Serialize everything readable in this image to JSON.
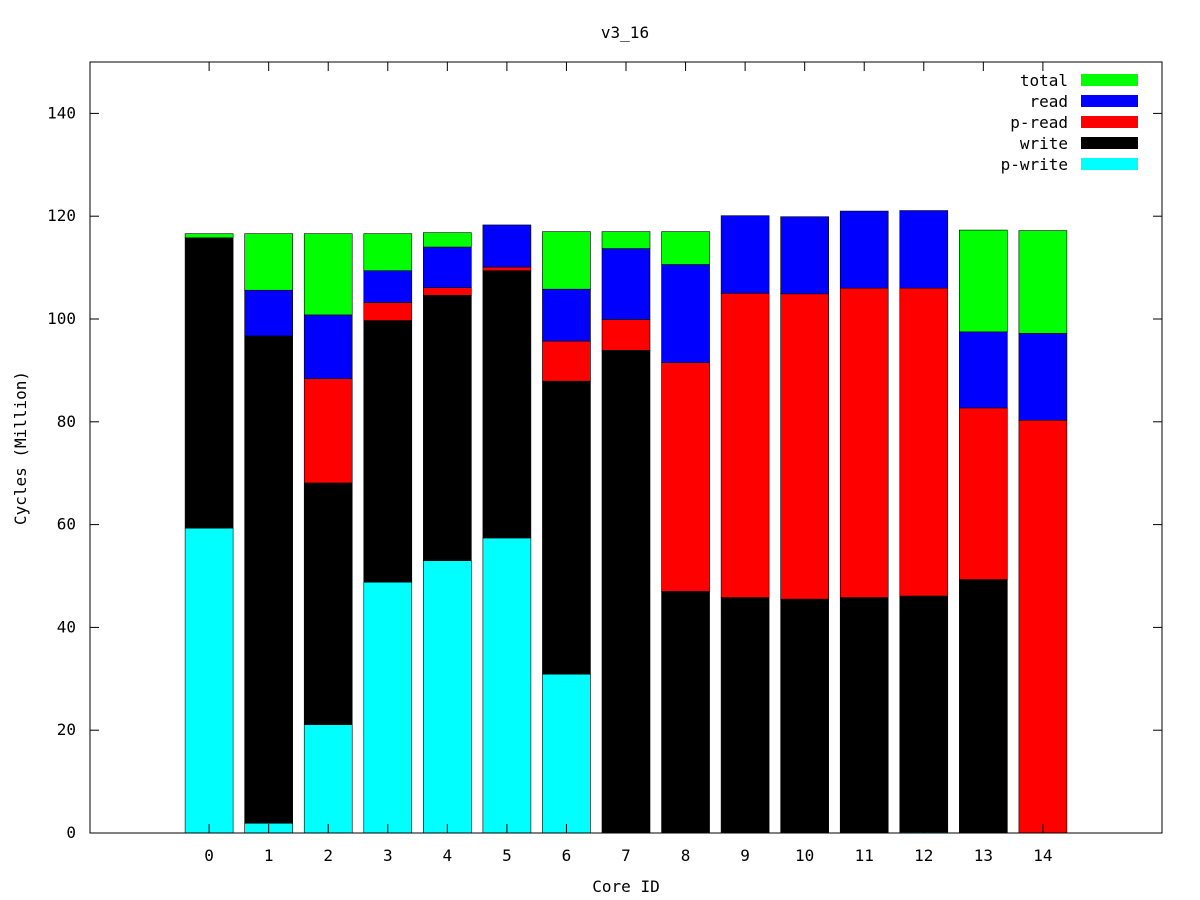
{
  "chart_data": {
    "type": "bar",
    "stacked": true,
    "title": "v3_16",
    "xlabel": "Core ID",
    "ylabel": "Cycles (Million)",
    "ylim": [
      0,
      150
    ],
    "yticks": [
      0,
      20,
      40,
      60,
      80,
      100,
      120,
      140
    ],
    "xlim": [
      -2,
      16
    ],
    "grid": false,
    "legend_position": "top-right",
    "categories": [
      "0",
      "1",
      "2",
      "3",
      "4",
      "5",
      "6",
      "7",
      "8",
      "9",
      "10",
      "11",
      "12",
      "13",
      "14"
    ],
    "series": [
      {
        "name": "p-write",
        "color": "#00ffff",
        "values": [
          59.3,
          1.9,
          21.1,
          48.8,
          53.0,
          57.4,
          30.9,
          0,
          0,
          0,
          0,
          0,
          0.2,
          0,
          0
        ]
      },
      {
        "name": "write",
        "color": "#000000",
        "values": [
          56.5,
          94.8,
          47.0,
          50.9,
          51.6,
          52.0,
          57.0,
          93.9,
          47.0,
          45.8,
          45.5,
          45.8,
          45.9,
          49.3,
          0
        ]
      },
      {
        "name": "p-read",
        "color": "#ff0000",
        "values": [
          0,
          0,
          20.3,
          3.5,
          1.5,
          0.7,
          7.8,
          6.0,
          44.5,
          59.2,
          59.4,
          60.2,
          59.9,
          33.4,
          80.3
        ]
      },
      {
        "name": "read",
        "color": "#0000ff",
        "values": [
          0,
          8.9,
          12.4,
          6.2,
          7.9,
          8.2,
          10.1,
          13.8,
          19.1,
          15.1,
          15.0,
          15.0,
          15.1,
          14.8,
          16.9
        ]
      },
      {
        "name": "total",
        "color": "#00ff00",
        "values": [
          0.8,
          11.0,
          15.8,
          7.2,
          2.8,
          0,
          11.2,
          3.3,
          6.4,
          0,
          0,
          0,
          0,
          19.8,
          20.0
        ]
      }
    ],
    "legend": [
      {
        "name": "total",
        "color": "#00ff00"
      },
      {
        "name": "read",
        "color": "#0000ff"
      },
      {
        "name": "p-read",
        "color": "#ff0000"
      },
      {
        "name": "write",
        "color": "#000000"
      },
      {
        "name": "p-write",
        "color": "#00ffff"
      }
    ]
  }
}
